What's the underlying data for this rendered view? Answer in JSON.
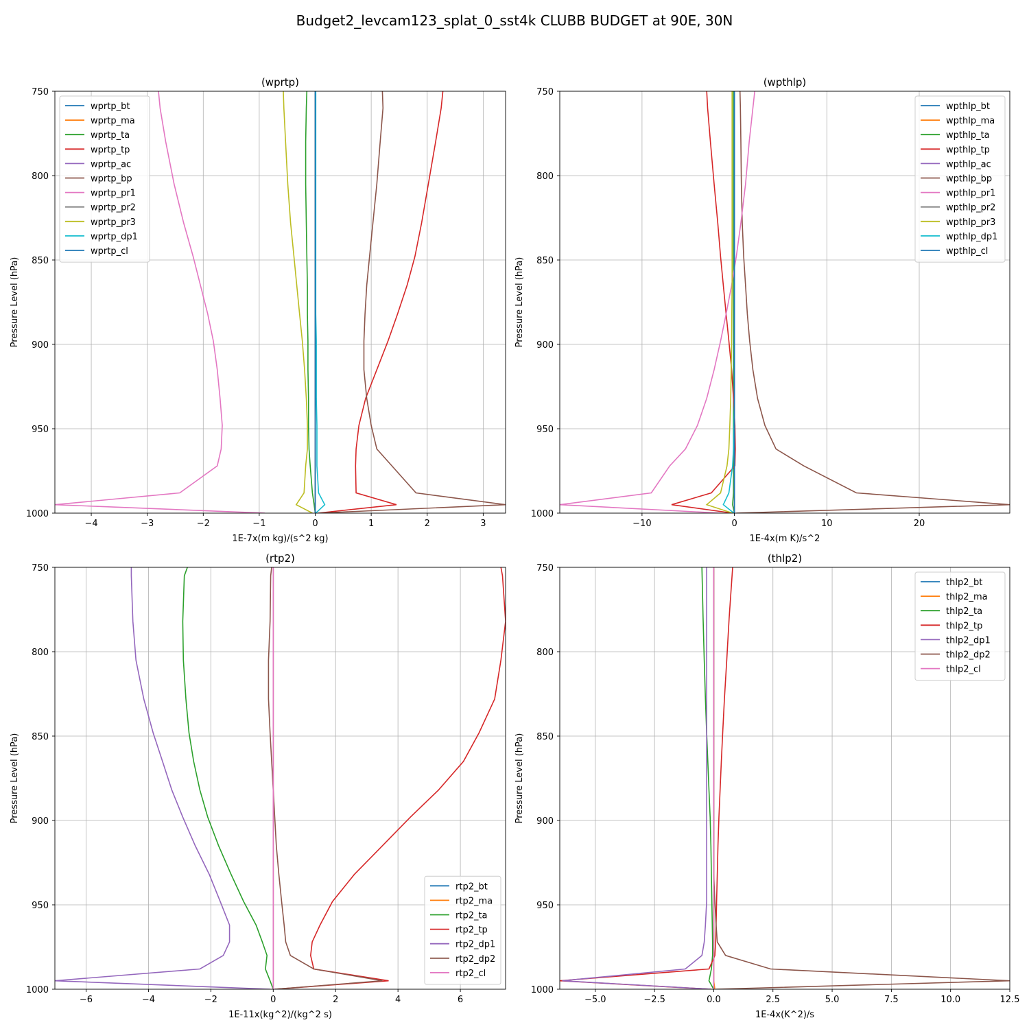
{
  "figure_title": "Budget2_levcam123_splat_0_sst4k CLUBB BUDGET at 90E, 30N",
  "chart_data": [
    {
      "type": "line",
      "title": "(wprtp)",
      "xlabel": "1E-7x(m kg)/(s^2 kg)",
      "ylabel": "Pressure Level (hPa)",
      "xlim": [
        -4.65,
        3.4
      ],
      "ylim": [
        750,
        1000
      ],
      "y_inverted": true,
      "grid": true,
      "x_ticks": [
        -4,
        -3,
        -2,
        -1,
        0,
        1,
        2,
        3
      ],
      "x_tick_labels": [
        "−4",
        "−3",
        "−2",
        "−1",
        "0",
        "1",
        "2",
        "3"
      ],
      "y_ticks": [
        750,
        800,
        850,
        900,
        950,
        1000
      ],
      "y_tick_labels": [
        "750",
        "800",
        "850",
        "900",
        "950",
        "1000"
      ],
      "legend_position": "upper-left",
      "levels": [
        750,
        760,
        780,
        805,
        828,
        848,
        865,
        882,
        898,
        915,
        932,
        948,
        962,
        972,
        988,
        995,
        1000
      ],
      "series": [
        {
          "name": "wprtp_bt",
          "color": "#1f77b4",
          "values": [
            0,
            0,
            0,
            0,
            0,
            0,
            0,
            0,
            0,
            0,
            0,
            0,
            0,
            0,
            0,
            0,
            0
          ]
        },
        {
          "name": "wprtp_ma",
          "color": "#ff7f0e",
          "values": [
            0,
            0,
            0,
            0,
            0,
            0,
            0,
            0,
            0,
            0,
            0,
            0,
            0,
            0,
            0,
            0,
            0
          ]
        },
        {
          "name": "wprtp_ta",
          "color": "#2ca02c",
          "values": [
            -0.15,
            -0.16,
            -0.17,
            -0.17,
            -0.16,
            -0.15,
            -0.14,
            -0.14,
            -0.13,
            -0.13,
            -0.12,
            -0.12,
            -0.11,
            -0.09,
            -0.05,
            -0.02,
            0
          ]
        },
        {
          "name": "wprtp_tp",
          "color": "#d62728",
          "values": [
            2.28,
            2.25,
            2.15,
            2.02,
            1.9,
            1.78,
            1.64,
            1.47,
            1.3,
            1.1,
            0.9,
            0.78,
            0.73,
            0.72,
            0.73,
            1.45,
            0.05
          ]
        },
        {
          "name": "wprtp_ac",
          "color": "#9467bd",
          "values": [
            0,
            0,
            0,
            0,
            0,
            0,
            0,
            0,
            0,
            0,
            0,
            0,
            0,
            0,
            0,
            0,
            0
          ]
        },
        {
          "name": "wprtp_bp",
          "color": "#8c564b",
          "values": [
            1.2,
            1.21,
            1.16,
            1.1,
            1.03,
            0.97,
            0.92,
            0.89,
            0.87,
            0.87,
            0.92,
            1.0,
            1.1,
            1.37,
            1.8,
            3.4,
            0.05
          ]
        },
        {
          "name": "wprtp_pr1",
          "color": "#e377c2",
          "values": [
            -2.8,
            -2.77,
            -2.67,
            -2.52,
            -2.35,
            -2.18,
            -2.05,
            -1.92,
            -1.82,
            -1.75,
            -1.7,
            -1.66,
            -1.68,
            -1.75,
            -2.42,
            -4.65,
            -0.9
          ]
        },
        {
          "name": "wprtp_pr2",
          "color": "#7f7f7f",
          "values": [
            0,
            0,
            0,
            0,
            0,
            0,
            0,
            0,
            0,
            0,
            0,
            0,
            0,
            0,
            0,
            0,
            0
          ]
        },
        {
          "name": "wprtp_pr3",
          "color": "#bcbd22",
          "values": [
            -0.57,
            -0.56,
            -0.53,
            -0.49,
            -0.44,
            -0.38,
            -0.33,
            -0.28,
            -0.23,
            -0.19,
            -0.16,
            -0.14,
            -0.14,
            -0.17,
            -0.2,
            -0.34,
            -0.05
          ]
        },
        {
          "name": "wprtp_dp1",
          "color": "#17becf",
          "values": [
            0.01,
            0.01,
            0.01,
            0.01,
            0.01,
            0.01,
            0.01,
            0.01,
            0.02,
            0.02,
            0.02,
            0.03,
            0.03,
            0.03,
            0.06,
            0.17,
            0.01
          ]
        },
        {
          "name": "wprtp_cl",
          "color": "#1f77b4",
          "values": [
            0,
            0,
            0,
            0,
            0,
            0,
            0,
            0,
            0,
            0,
            0,
            0,
            0,
            0,
            0,
            0,
            0
          ]
        }
      ]
    },
    {
      "type": "line",
      "title": "(wpthlp)",
      "xlabel": "1E-4x(m K)/s^2",
      "ylabel": "Pressure Level (hPa)",
      "xlim": [
        -18.9,
        29.8
      ],
      "ylim": [
        750,
        1000
      ],
      "y_inverted": true,
      "grid": true,
      "x_ticks": [
        -10,
        0,
        10,
        20
      ],
      "x_tick_labels": [
        "−10",
        "0",
        "10",
        "20"
      ],
      "y_ticks": [
        750,
        800,
        850,
        900,
        950,
        1000
      ],
      "y_tick_labels": [
        "750",
        "800",
        "850",
        "900",
        "950",
        "1000"
      ],
      "legend_position": "upper-right",
      "levels": [
        750,
        760,
        780,
        805,
        828,
        848,
        865,
        882,
        898,
        915,
        932,
        948,
        962,
        972,
        988,
        995,
        1000
      ],
      "series": [
        {
          "name": "wpthlp_bt",
          "color": "#1f77b4",
          "values": [
            0,
            0,
            0,
            0,
            0,
            0,
            0,
            0,
            0,
            0,
            0,
            0,
            0,
            0,
            0,
            0,
            0
          ]
        },
        {
          "name": "wpthlp_ma",
          "color": "#ff7f0e",
          "values": [
            0,
            0,
            0,
            0,
            0,
            0,
            0,
            0,
            0,
            0,
            0,
            0,
            0,
            0,
            0,
            0,
            0
          ]
        },
        {
          "name": "wpthlp_ta",
          "color": "#2ca02c",
          "values": [
            -0.1,
            -0.1,
            -0.1,
            -0.1,
            -0.1,
            -0.1,
            -0.1,
            -0.1,
            -0.1,
            -0.1,
            -0.1,
            -0.1,
            -0.1,
            -0.1,
            -0.1,
            -0.2,
            0
          ]
        },
        {
          "name": "wpthlp_tp",
          "color": "#d62728",
          "values": [
            -3.0,
            -2.9,
            -2.6,
            -2.2,
            -1.8,
            -1.5,
            -1.2,
            -0.9,
            -0.6,
            -0.3,
            -0.1,
            0.05,
            0.1,
            0.05,
            -2.5,
            -6.8,
            -0.2
          ]
        },
        {
          "name": "wpthlp_ac",
          "color": "#9467bd",
          "values": [
            0,
            0,
            0,
            0,
            0,
            0,
            0,
            0,
            0,
            0,
            0,
            0,
            0,
            0,
            0,
            0,
            0
          ]
        },
        {
          "name": "wpthlp_bp",
          "color": "#8c564b",
          "values": [
            0.6,
            0.65,
            0.7,
            0.75,
            0.85,
            1.0,
            1.2,
            1.4,
            1.65,
            2.0,
            2.5,
            3.3,
            4.5,
            7.5,
            13.2,
            29.8,
            0.2
          ]
        },
        {
          "name": "wpthlp_pr1",
          "color": "#e377c2",
          "values": [
            2.2,
            2.0,
            1.6,
            1.2,
            0.7,
            0.2,
            -0.3,
            -0.9,
            -1.5,
            -2.2,
            -3.0,
            -4.0,
            -5.3,
            -7.0,
            -9.0,
            -18.9,
            -1.5
          ]
        },
        {
          "name": "wpthlp_pr2",
          "color": "#7f7f7f",
          "values": [
            0,
            0,
            0,
            0,
            0,
            0,
            0,
            0,
            0,
            0,
            0,
            0,
            0,
            0,
            0,
            0,
            0
          ]
        },
        {
          "name": "wpthlp_pr3",
          "color": "#bcbd22",
          "values": [
            -0.25,
            -0.25,
            -0.25,
            -0.25,
            -0.25,
            -0.25,
            -0.25,
            -0.28,
            -0.3,
            -0.35,
            -0.4,
            -0.5,
            -0.6,
            -0.8,
            -1.5,
            -3.0,
            -0.2
          ]
        },
        {
          "name": "wpthlp_dp1",
          "color": "#17becf",
          "values": [
            0,
            0,
            0,
            0,
            0,
            0,
            0,
            0,
            0,
            0,
            0,
            -0.05,
            -0.1,
            -0.2,
            -0.6,
            -1.2,
            -0.05
          ]
        },
        {
          "name": "wpthlp_cl",
          "color": "#1f77b4",
          "values": [
            0,
            0,
            0,
            0,
            0,
            0,
            0,
            0,
            0,
            0,
            0,
            0,
            0,
            0,
            0,
            0,
            0
          ]
        }
      ]
    },
    {
      "type": "line",
      "title": "(rtp2)",
      "xlabel": "1E-11x(kg^2)/(kg^2 s)",
      "ylabel": "Pressure Level (hPa)",
      "xlim": [
        -7.0,
        7.45
      ],
      "ylim": [
        750,
        1000
      ],
      "y_inverted": true,
      "grid": true,
      "x_ticks": [
        -6,
        -4,
        -2,
        0,
        2,
        4,
        6
      ],
      "x_tick_labels": [
        "−6",
        "−4",
        "−2",
        "0",
        "2",
        "4",
        "6"
      ],
      "y_ticks": [
        750,
        800,
        850,
        900,
        950,
        1000
      ],
      "y_tick_labels": [
        "750",
        "800",
        "850",
        "900",
        "950",
        "1000"
      ],
      "legend_position": "lower-right",
      "levels": [
        750,
        755,
        782,
        805,
        828,
        848,
        865,
        882,
        898,
        915,
        932,
        948,
        962,
        972,
        980,
        988,
        995,
        1000
      ],
      "series": [
        {
          "name": "rtp2_bt",
          "color": "#1f77b4",
          "values": [
            0,
            0,
            0,
            0,
            0,
            0,
            0,
            0,
            0,
            0,
            0,
            0,
            0,
            0,
            0,
            0,
            0,
            0
          ]
        },
        {
          "name": "rtp2_ma",
          "color": "#ff7f0e",
          "values": [
            0,
            0,
            0,
            0,
            0,
            0,
            0,
            0,
            0,
            0,
            0,
            0,
            0,
            0,
            0,
            0,
            0,
            0
          ]
        },
        {
          "name": "rtp2_ta",
          "color": "#2ca02c",
          "values": [
            -2.75,
            -2.85,
            -2.9,
            -2.88,
            -2.8,
            -2.7,
            -2.55,
            -2.35,
            -2.1,
            -1.75,
            -1.35,
            -0.95,
            -0.55,
            -0.35,
            -0.2,
            -0.25,
            -0.1,
            0
          ]
        },
        {
          "name": "rtp2_tp",
          "color": "#d62728",
          "values": [
            7.3,
            7.35,
            7.45,
            7.3,
            7.1,
            6.6,
            6.1,
            5.3,
            4.4,
            3.5,
            2.6,
            1.9,
            1.5,
            1.25,
            1.2,
            1.3,
            3.7,
            0.05
          ]
        },
        {
          "name": "rtp2_dp1",
          "color": "#9467bd",
          "values": [
            -4.55,
            -4.55,
            -4.5,
            -4.4,
            -4.15,
            -3.85,
            -3.55,
            -3.25,
            -2.9,
            -2.5,
            -2.05,
            -1.7,
            -1.4,
            -1.4,
            -1.6,
            -2.35,
            -7.0,
            -0.1
          ]
        },
        {
          "name": "rtp2_dp2",
          "color": "#8c564b",
          "values": [
            -0.05,
            -0.08,
            -0.1,
            -0.15,
            -0.15,
            -0.1,
            -0.05,
            0,
            0.05,
            0.1,
            0.18,
            0.27,
            0.35,
            0.4,
            0.55,
            1.3,
            3.5,
            0.05
          ]
        },
        {
          "name": "rtp2_cl",
          "color": "#e377c2",
          "values": [
            0,
            0,
            0,
            0,
            0,
            0,
            0,
            0,
            0,
            0,
            0,
            0,
            0,
            0,
            0,
            0,
            0,
            0
          ]
        }
      ]
    },
    {
      "type": "line",
      "title": "(thlp2)",
      "xlabel": "1E-4x(K^2)/s",
      "ylabel": "Pressure Level (hPa)",
      "xlim": [
        -6.5,
        12.5
      ],
      "ylim": [
        750,
        1000
      ],
      "y_inverted": true,
      "grid": true,
      "x_ticks": [
        -5.0,
        -2.5,
        0.0,
        2.5,
        5.0,
        7.5,
        10.0,
        12.5
      ],
      "x_tick_labels": [
        "−5.0",
        "−2.5",
        "0.0",
        "2.5",
        "5.0",
        "7.5",
        "10.0",
        "12.5"
      ],
      "y_ticks": [
        750,
        800,
        850,
        900,
        950,
        1000
      ],
      "y_tick_labels": [
        "750",
        "800",
        "850",
        "900",
        "950",
        "1000"
      ],
      "legend_position": "upper-right",
      "levels": [
        750,
        780,
        805,
        828,
        848,
        865,
        882,
        898,
        915,
        932,
        948,
        962,
        972,
        980,
        988,
        995,
        1000
      ],
      "series": [
        {
          "name": "thlp2_bt",
          "color": "#1f77b4",
          "values": [
            0,
            0,
            0,
            0,
            0,
            0,
            0,
            0,
            0,
            0,
            0,
            0,
            0,
            0,
            0,
            0,
            0
          ]
        },
        {
          "name": "thlp2_ma",
          "color": "#ff7f0e",
          "values": [
            0,
            0,
            0,
            0,
            0,
            0,
            0,
            0,
            0,
            0,
            0,
            0,
            0,
            0,
            0,
            0,
            0.05
          ]
        },
        {
          "name": "thlp2_ta",
          "color": "#2ca02c",
          "values": [
            -0.5,
            -0.45,
            -0.4,
            -0.35,
            -0.3,
            -0.25,
            -0.2,
            -0.15,
            -0.12,
            -0.1,
            -0.08,
            -0.06,
            -0.05,
            -0.05,
            -0.1,
            -0.2,
            0
          ]
        },
        {
          "name": "thlp2_tp",
          "color": "#d62728",
          "values": [
            0.8,
            0.65,
            0.55,
            0.45,
            0.38,
            0.32,
            0.27,
            0.22,
            0.18,
            0.15,
            0.12,
            0.1,
            0.08,
            0.05,
            -0.2,
            -6.5,
            -0.1
          ]
        },
        {
          "name": "thlp2_dp1",
          "color": "#9467bd",
          "values": [
            -0.3,
            -0.3,
            -0.3,
            -0.3,
            -0.3,
            -0.3,
            -0.3,
            -0.3,
            -0.3,
            -0.3,
            -0.3,
            -0.35,
            -0.4,
            -0.5,
            -1.2,
            -6.4,
            -0.1
          ]
        },
        {
          "name": "thlp2_dp2",
          "color": "#8c564b",
          "values": [
            0,
            0,
            0,
            0,
            0,
            0,
            0,
            0,
            0,
            0,
            0.05,
            0.1,
            0.15,
            0.5,
            2.4,
            12.5,
            0.1
          ]
        },
        {
          "name": "thlp2_cl",
          "color": "#e377c2",
          "values": [
            0,
            0,
            0,
            0,
            0,
            0,
            0,
            0,
            0,
            0,
            0,
            0,
            0,
            0,
            0,
            0,
            0
          ]
        }
      ]
    }
  ]
}
